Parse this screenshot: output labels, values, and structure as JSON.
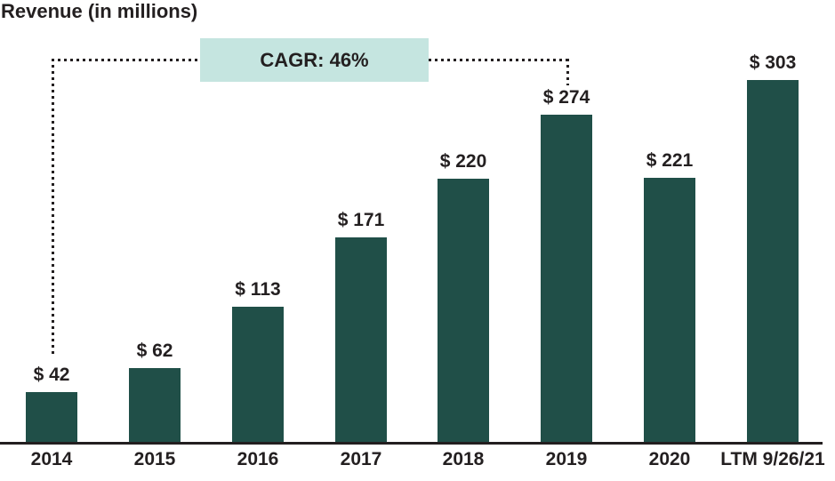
{
  "chart_data": {
    "type": "bar",
    "title": "Revenue (in millions)",
    "categories": [
      "2014",
      "2015",
      "2016",
      "2017",
      "2018",
      "2019",
      "2020",
      "LTM 9/26/21"
    ],
    "values": [
      42,
      62,
      113,
      171,
      220,
      274,
      221,
      303
    ],
    "value_labels": [
      "$ 42",
      "$ 62",
      "$ 113",
      "$ 171",
      "$ 220",
      "$ 274",
      "$ 221",
      "$ 303"
    ],
    "ylim": [
      0,
      310
    ],
    "grid": false,
    "legend": "none",
    "annotation": {
      "label": "CAGR: 46%",
      "from_category": "2014",
      "to_category": "2019",
      "style": "dotted-connector"
    },
    "colors": {
      "bar": "#204f48",
      "annotation_bg": "#c5e5e0",
      "text": "#231f20",
      "axis": "#231f20"
    }
  }
}
